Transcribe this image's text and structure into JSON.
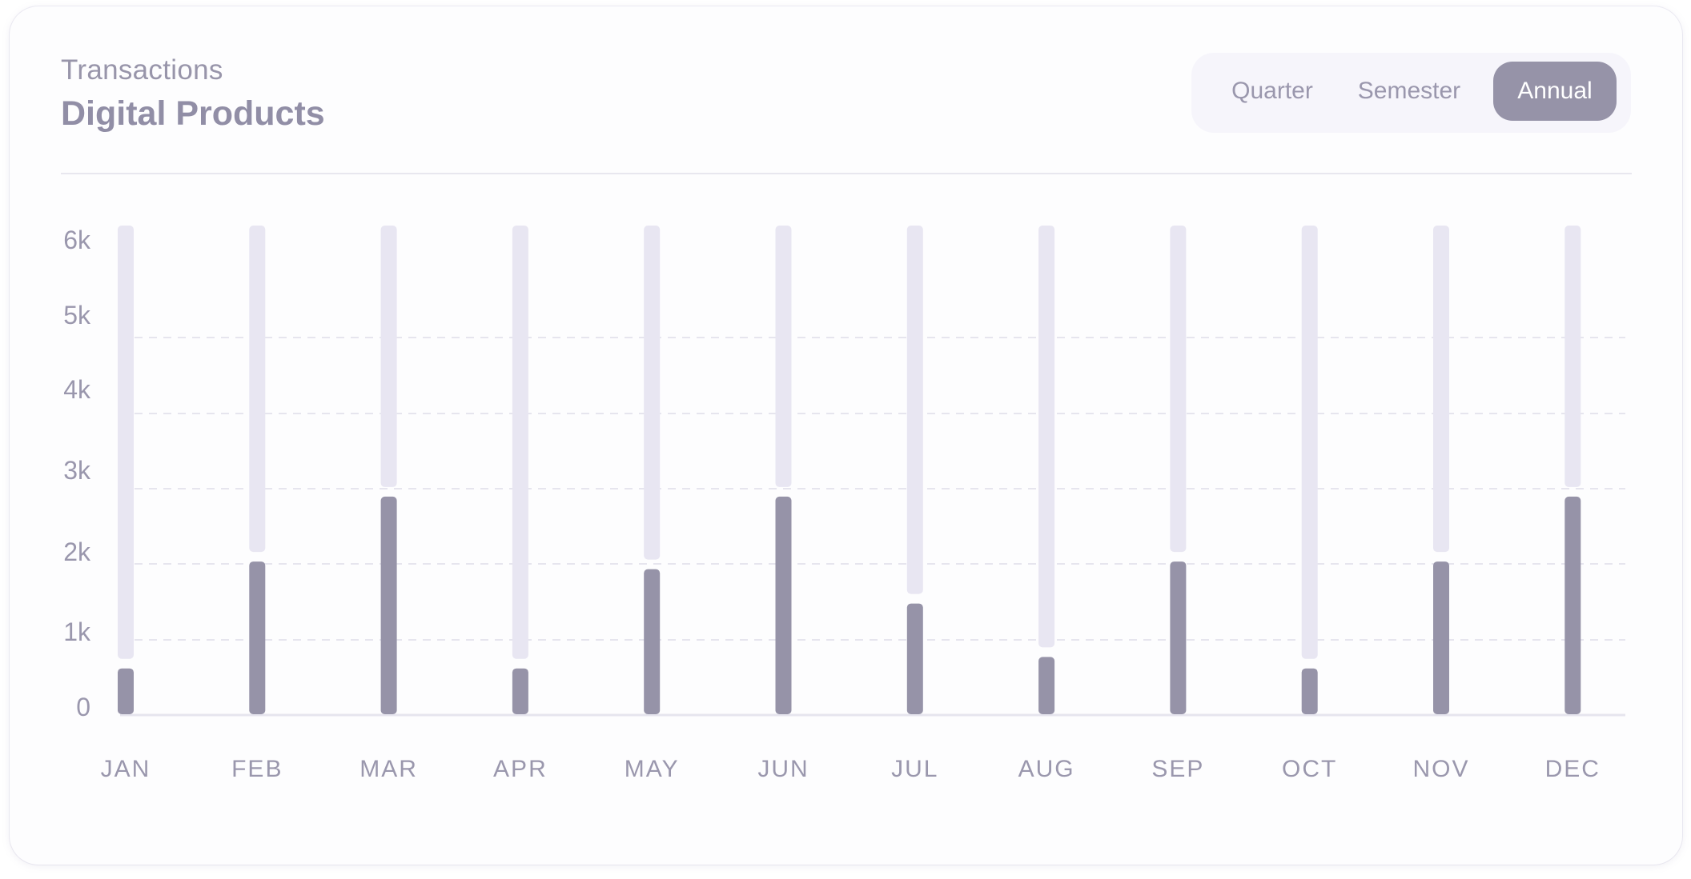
{
  "card": {
    "subtitle": "Transactions",
    "title": "Digital Products"
  },
  "period_selector": {
    "options": [
      "Quarter",
      "Semester",
      "Annual"
    ],
    "selected": "Annual"
  },
  "colors": {
    "bar": "#9693a8",
    "bar_track": "#e8e6f2",
    "grid": "#e6e5ee",
    "axis_text": "#9a97ad",
    "title_text": "#918ea6"
  },
  "chart_data": {
    "type": "bar",
    "categories": [
      "JAN",
      "FEB",
      "MAR",
      "APR",
      "MAY",
      "JUN",
      "JUL",
      "AUG",
      "SEP",
      "OCT",
      "NOV",
      "DEC"
    ],
    "values": [
      600,
      2000,
      2850,
      600,
      1900,
      2850,
      1450,
      750,
      2000,
      600,
      2000,
      2850
    ],
    "yticks": [
      "0",
      "1k",
      "2k",
      "3k",
      "4k",
      "5k",
      "6k"
    ],
    "ylim": [
      0,
      6400
    ],
    "grid": "dashed horizontal",
    "legend": "none",
    "title": "",
    "xlabel": "",
    "ylabel": ""
  }
}
